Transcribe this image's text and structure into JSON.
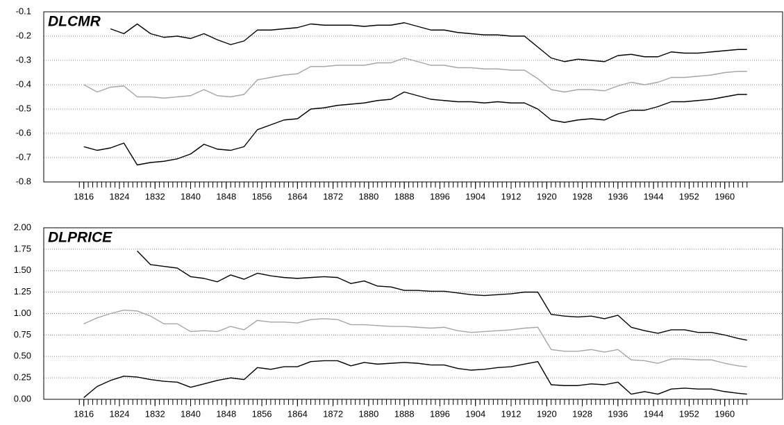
{
  "chart_data": [
    {
      "type": "line",
      "title": "DLCMR",
      "x": [
        1816,
        1819,
        1822,
        1825,
        1828,
        1831,
        1834,
        1837,
        1840,
        1843,
        1846,
        1849,
        1852,
        1855,
        1858,
        1861,
        1864,
        1867,
        1870,
        1873,
        1876,
        1879,
        1882,
        1885,
        1888,
        1891,
        1894,
        1897,
        1900,
        1903,
        1906,
        1909,
        1912,
        1915,
        1918,
        1921,
        1924,
        1927,
        1930,
        1933,
        1936,
        1939,
        1942,
        1945,
        1948,
        1951,
        1954,
        1957,
        1960,
        1963,
        1965
      ],
      "series": [
        {
          "color": "#000000",
          "values": [
            null,
            null,
            -0.17,
            -0.19,
            -0.15,
            -0.19,
            -0.205,
            -0.2,
            -0.21,
            -0.19,
            -0.215,
            -0.235,
            -0.22,
            -0.175,
            -0.175,
            -0.17,
            -0.165,
            -0.15,
            -0.155,
            -0.155,
            -0.155,
            -0.16,
            -0.155,
            -0.155,
            -0.145,
            -0.16,
            -0.175,
            -0.175,
            -0.185,
            -0.19,
            -0.195,
            -0.195,
            -0.2,
            -0.2,
            -0.245,
            -0.29,
            -0.305,
            -0.295,
            -0.3,
            -0.305,
            -0.28,
            -0.275,
            -0.285,
            -0.285,
            -0.265,
            -0.27,
            -0.27,
            -0.265,
            -0.26,
            -0.255,
            -0.255
          ]
        },
        {
          "color": "#a6a6a6",
          "values": [
            -0.4,
            -0.43,
            -0.41,
            -0.405,
            -0.45,
            -0.45,
            -0.455,
            -0.45,
            -0.445,
            -0.42,
            -0.445,
            -0.45,
            -0.44,
            -0.38,
            -0.37,
            -0.36,
            -0.355,
            -0.325,
            -0.325,
            -0.32,
            -0.32,
            -0.32,
            -0.31,
            -0.31,
            -0.29,
            -0.305,
            -0.32,
            -0.32,
            -0.33,
            -0.33,
            -0.335,
            -0.335,
            -0.34,
            -0.34,
            -0.375,
            -0.42,
            -0.43,
            -0.42,
            -0.42,
            -0.425,
            -0.405,
            -0.39,
            -0.4,
            -0.39,
            -0.37,
            -0.37,
            -0.365,
            -0.36,
            -0.35,
            -0.345,
            -0.345
          ]
        },
        {
          "color": "#000000",
          "values": [
            -0.655,
            -0.67,
            -0.66,
            -0.64,
            -0.73,
            -0.72,
            -0.715,
            -0.705,
            -0.685,
            -0.645,
            -0.665,
            -0.67,
            -0.655,
            -0.585,
            -0.565,
            -0.545,
            -0.54,
            -0.5,
            -0.495,
            -0.485,
            -0.48,
            -0.475,
            -0.465,
            -0.46,
            -0.43,
            -0.445,
            -0.46,
            -0.465,
            -0.47,
            -0.47,
            -0.475,
            -0.47,
            -0.475,
            -0.475,
            -0.5,
            -0.545,
            -0.555,
            -0.545,
            -0.54,
            -0.545,
            -0.52,
            -0.505,
            -0.505,
            -0.49,
            -0.47,
            -0.47,
            -0.465,
            -0.46,
            -0.45,
            -0.44,
            -0.44
          ]
        }
      ],
      "xlim": [
        1807,
        1973
      ],
      "xticks": [
        1816,
        1824,
        1832,
        1840,
        1848,
        1856,
        1864,
        1872,
        1880,
        1888,
        1896,
        1904,
        1912,
        1920,
        1928,
        1936,
        1944,
        1952,
        1960
      ],
      "xminor_step": 1,
      "ylim": [
        -0.8,
        -0.1
      ],
      "yticks": [
        -0.8,
        -0.7,
        -0.6,
        -0.5,
        -0.4,
        -0.3,
        -0.2,
        -0.1
      ],
      "grid": true
    },
    {
      "type": "line",
      "title": "DLPRICE",
      "x": [
        1816,
        1819,
        1822,
        1825,
        1828,
        1831,
        1834,
        1837,
        1840,
        1843,
        1846,
        1849,
        1852,
        1855,
        1858,
        1861,
        1864,
        1867,
        1870,
        1873,
        1876,
        1879,
        1882,
        1885,
        1888,
        1891,
        1894,
        1897,
        1900,
        1903,
        1906,
        1909,
        1912,
        1915,
        1918,
        1921,
        1924,
        1927,
        1930,
        1933,
        1936,
        1939,
        1942,
        1945,
        1948,
        1951,
        1954,
        1957,
        1960,
        1963,
        1965
      ],
      "series": [
        {
          "color": "#000000",
          "values": [
            null,
            null,
            null,
            null,
            1.73,
            1.57,
            1.55,
            1.53,
            1.43,
            1.41,
            1.37,
            1.45,
            1.4,
            1.47,
            1.44,
            1.42,
            1.41,
            1.42,
            1.43,
            1.42,
            1.35,
            1.38,
            1.32,
            1.31,
            1.27,
            1.27,
            1.26,
            1.26,
            1.24,
            1.22,
            1.21,
            1.22,
            1.23,
            1.25,
            1.25,
            0.99,
            0.97,
            0.96,
            0.97,
            0.94,
            0.98,
            0.84,
            0.8,
            0.77,
            0.81,
            0.81,
            0.78,
            0.78,
            0.75,
            0.71,
            0.69
          ]
        },
        {
          "color": "#a6a6a6",
          "values": [
            0.88,
            0.95,
            1.0,
            1.04,
            1.03,
            0.97,
            0.88,
            0.88,
            0.79,
            0.8,
            0.79,
            0.85,
            0.81,
            0.92,
            0.9,
            0.9,
            0.89,
            0.93,
            0.94,
            0.93,
            0.87,
            0.87,
            0.86,
            0.85,
            0.85,
            0.84,
            0.83,
            0.84,
            0.8,
            0.78,
            0.79,
            0.8,
            0.81,
            0.83,
            0.84,
            0.58,
            0.56,
            0.56,
            0.58,
            0.55,
            0.58,
            0.46,
            0.45,
            0.42,
            0.47,
            0.47,
            0.46,
            0.46,
            0.42,
            0.39,
            0.38
          ]
        },
        {
          "color": "#000000",
          "values": [
            0.02,
            0.15,
            0.22,
            0.27,
            0.26,
            0.23,
            0.21,
            0.2,
            0.14,
            0.18,
            0.22,
            0.25,
            0.23,
            0.37,
            0.35,
            0.38,
            0.38,
            0.44,
            0.45,
            0.45,
            0.39,
            0.43,
            0.41,
            0.42,
            0.43,
            0.42,
            0.4,
            0.4,
            0.36,
            0.34,
            0.35,
            0.37,
            0.38,
            0.41,
            0.44,
            0.17,
            0.16,
            0.16,
            0.18,
            0.17,
            0.2,
            0.06,
            0.09,
            0.06,
            0.12,
            0.13,
            0.12,
            0.12,
            0.09,
            0.07,
            0.06
          ]
        }
      ],
      "xlim": [
        1807,
        1973
      ],
      "xticks": [
        1816,
        1824,
        1832,
        1840,
        1848,
        1856,
        1864,
        1872,
        1880,
        1888,
        1896,
        1904,
        1912,
        1920,
        1928,
        1936,
        1944,
        1952,
        1960
      ],
      "xminor_step": 1,
      "ylim": [
        0,
        2
      ],
      "yticks": [
        {
          "value": 0,
          "label": "0.00"
        },
        {
          "value": 0.25,
          "label": "0.25"
        },
        {
          "value": 0.5,
          "label": "0.50"
        },
        {
          "value": 0.75,
          "label": "0.75"
        },
        {
          "value": 1,
          "label": "1.00"
        },
        {
          "value": 1.25,
          "label": "1.25"
        },
        {
          "value": 1.5,
          "label": "1.50"
        },
        {
          "value": 1.75,
          "label": "1.75"
        },
        {
          "value": 2,
          "label": "2.00"
        }
      ],
      "grid": true
    }
  ]
}
